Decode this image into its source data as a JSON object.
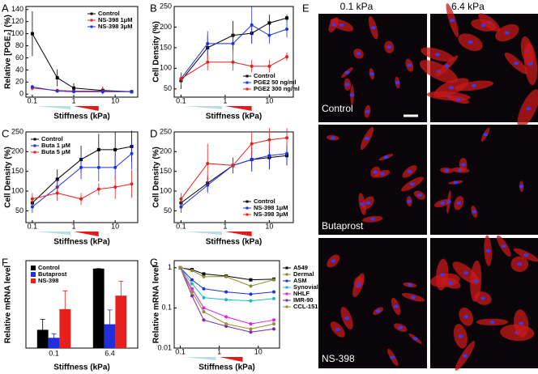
{
  "chart_data": [
    {
      "type": "line",
      "panel": "A",
      "ylabel": "Relative [PGE₂] (%)",
      "xlabel": "Stiffness (kPa)",
      "xscale": "log",
      "x": [
        0.1,
        0.4,
        1,
        5,
        25
      ],
      "xlim": [
        0.07,
        35
      ],
      "xticks": [
        0.1,
        1,
        10
      ],
      "ylim": [
        -5,
        145
      ],
      "yticks": [
        0,
        20,
        40,
        60,
        80,
        100,
        120,
        140
      ],
      "legend": "upper right",
      "series": [
        {
          "name": "Control",
          "color": "#000000",
          "values": [
            100,
            27,
            10,
            6,
            4
          ],
          "errors": [
            37,
            14,
            8,
            6,
            3
          ]
        },
        {
          "name": "NS-398  1μM",
          "color": "#e8201c",
          "values": [
            10,
            6,
            5,
            5,
            4
          ],
          "errors": [
            4,
            3,
            2,
            2,
            2
          ]
        },
        {
          "name": "NS-398  3μM",
          "color": "#1f2fe0",
          "values": [
            12,
            5,
            4,
            4,
            4
          ],
          "errors": [
            3,
            2,
            2,
            2,
            2
          ]
        }
      ]
    },
    {
      "type": "line",
      "panel": "B",
      "ylabel": "Cell Density (%)",
      "xlabel": "Stiffness (kPa)",
      "xscale": "log",
      "x": [
        0.1,
        0.4,
        1.5,
        4,
        10,
        25
      ],
      "xlim": [
        0.07,
        35
      ],
      "xticks": [
        0.1,
        1,
        10
      ],
      "ylim": [
        30,
        250
      ],
      "yticks": [
        50,
        100,
        150,
        200,
        250
      ],
      "legend": "lower right",
      "series": [
        {
          "name": "Control",
          "color": "#000000",
          "values": [
            70,
            150,
            180,
            185,
            210,
            222
          ],
          "errors": [
            20,
            30,
            35,
            25,
            20,
            8
          ]
        },
        {
          "name": "PGE2 50 ng/ml",
          "color": "#1f2fe0",
          "values": [
            75,
            160,
            160,
            205,
            180,
            195
          ],
          "errors": [
            15,
            30,
            25,
            45,
            20,
            20
          ]
        },
        {
          "name": "PGE2 300 ng/ml",
          "color": "#e8201c",
          "values": [
            75,
            115,
            115,
            105,
            105,
            128
          ],
          "errors": [
            15,
            20,
            20,
            15,
            15,
            10
          ]
        }
      ]
    },
    {
      "type": "line",
      "panel": "C",
      "ylabel": "Cell Density (%)",
      "xlabel": "Stiffness (kPa)",
      "xscale": "log",
      "x": [
        0.1,
        0.4,
        1.5,
        4,
        10,
        25
      ],
      "xlim": [
        0.07,
        35
      ],
      "xticks": [
        0.1,
        1,
        10
      ],
      "ylim": [
        20,
        250
      ],
      "yticks": [
        50,
        100,
        150,
        200,
        250
      ],
      "legend": "upper left",
      "series": [
        {
          "name": "Control",
          "color": "#000000",
          "values": [
            70,
            130,
            180,
            205,
            205,
            213
          ],
          "errors": [
            15,
            25,
            35,
            40,
            45,
            40
          ]
        },
        {
          "name": "Buta 1 μM",
          "color": "#1f2fe0",
          "values": [
            60,
            110,
            160,
            160,
            160,
            195
          ],
          "errors": [
            15,
            20,
            30,
            35,
            30,
            40
          ]
        },
        {
          "name": "Buta 5 μM",
          "color": "#e8201c",
          "values": [
            80,
            95,
            80,
            105,
            110,
            118
          ],
          "errors": [
            15,
            20,
            15,
            15,
            30,
            35
          ]
        }
      ]
    },
    {
      "type": "line",
      "panel": "D",
      "ylabel": "Cell Density (%)",
      "xlabel": "Stiffness (kPa)",
      "xscale": "log",
      "x": [
        0.1,
        0.4,
        1.5,
        4,
        10,
        25
      ],
      "xlim": [
        0.07,
        35
      ],
      "xticks": [
        0.1,
        1,
        10
      ],
      "ylim": [
        20,
        250
      ],
      "yticks": [
        50,
        100,
        150,
        200,
        250
      ],
      "legend": "lower right",
      "series": [
        {
          "name": "Control",
          "color": "#000000",
          "values": [
            70,
            120,
            165,
            180,
            185,
            190
          ],
          "errors": [
            15,
            20,
            20,
            30,
            30,
            25
          ]
        },
        {
          "name": "NS-398 1μM",
          "color": "#1f2fe0",
          "values": [
            60,
            115,
            165,
            180,
            190,
            195
          ],
          "errors": [
            15,
            20,
            20,
            30,
            30,
            25
          ]
        },
        {
          "name": "NS-398 3μM",
          "color": "#e8201c",
          "values": [
            80,
            170,
            165,
            220,
            230,
            235
          ],
          "errors": [
            15,
            50,
            20,
            30,
            30,
            25
          ]
        }
      ]
    },
    {
      "type": "bar",
      "panel": "F",
      "ylabel": "Relative mRNA level",
      "xlabel": "Stiffness (kPa)",
      "categories": [
        "0.1",
        "6.4"
      ],
      "ylim": [
        0,
        1.1
      ],
      "legend": "upper left",
      "series": [
        {
          "name": "Control",
          "color": "#000000",
          "values": [
            0.23,
            1.0
          ],
          "errors": [
            0.13,
            0
          ]
        },
        {
          "name": "Butaprost",
          "color": "#1f2fe0",
          "values": [
            0.13,
            0.3
          ],
          "errors": [
            0.05,
            0.18
          ]
        },
        {
          "name": "NS-398",
          "color": "#e8201c",
          "values": [
            0.49,
            0.66
          ],
          "errors": [
            0.23,
            0.18
          ]
        }
      ]
    },
    {
      "type": "line",
      "panel": "G",
      "ylabel": "Relative mRNA level",
      "xlabel": "Stiffness (kPa)",
      "xscale": "log",
      "yscale": "log",
      "x": [
        0.1,
        0.2,
        0.4,
        1.5,
        6.4,
        25
      ],
      "xlim": [
        0.07,
        35
      ],
      "xticks": [
        0.1,
        1,
        10
      ],
      "ylim": [
        0.01,
        1.5
      ],
      "yticks": [
        0.01,
        0.1,
        1
      ],
      "legend": "outside right",
      "series": [
        {
          "name": "A549",
          "color": "#000000",
          "values": [
            1,
            0.9,
            0.7,
            0.62,
            0.5,
            0.52
          ]
        },
        {
          "name": "Dermal",
          "color": "#8a8a2a",
          "values": [
            1,
            0.85,
            0.6,
            0.6,
            0.35,
            0.5
          ]
        },
        {
          "name": "ASM",
          "color": "#1f2fe0",
          "values": [
            1,
            0.5,
            0.3,
            0.25,
            0.22,
            0.25
          ]
        },
        {
          "name": "Synovial",
          "color": "#1fb8c8",
          "values": [
            1,
            0.4,
            0.18,
            0.16,
            0.15,
            0.17
          ]
        },
        {
          "name": "NHLF",
          "color": "#e020e0",
          "values": [
            1,
            0.3,
            0.1,
            0.06,
            0.04,
            0.05
          ]
        },
        {
          "name": "IMR-90",
          "color": "#7a2aa0",
          "values": [
            1,
            0.2,
            0.05,
            0.035,
            0.025,
            0.03
          ]
        },
        {
          "name": "CCL-151",
          "color": "#9a8a3a",
          "values": [
            1,
            0.25,
            0.08,
            0.04,
            0.03,
            0.04
          ]
        }
      ]
    }
  ],
  "image_panel": {
    "panel": "E",
    "columns": [
      "0.1 kPa",
      "6.4 kPa"
    ],
    "rows": [
      "Control",
      "Butaprost",
      "NS-398"
    ]
  }
}
